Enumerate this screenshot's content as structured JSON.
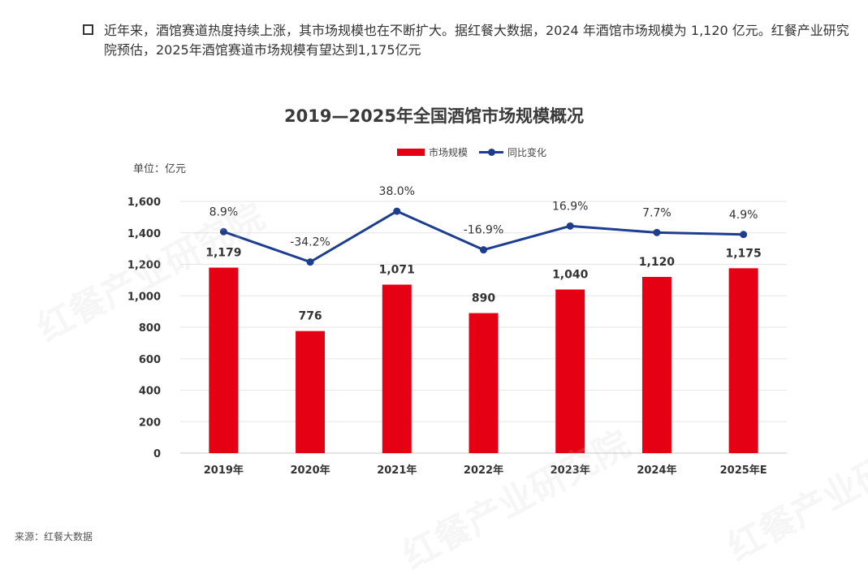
{
  "intro": {
    "text": "近年来，酒馆赛道热度持续上涨，其市场规模也在不断扩大。据红餐大数据，2024 年酒馆市场规模为 1,120 亿元。红餐产业研究院预估，2025年酒馆赛道市场规模有望达到1,175亿元"
  },
  "source": "来源：红餐大数据",
  "watermark": "红餐产业研究院",
  "chart_data": {
    "type": "bar",
    "title": "2019—2025年全国酒馆市场规模概况",
    "unit_label": "单位：亿元",
    "categories": [
      "2019年",
      "2020年",
      "2021年",
      "2022年",
      "2023年",
      "2024年",
      "2025年E"
    ],
    "series": [
      {
        "name": "市场规模",
        "type": "bar",
        "color": "#e50013",
        "values": [
          1179,
          776,
          1071,
          890,
          1040,
          1120,
          1175
        ],
        "labels": [
          "1,179",
          "776",
          "1,071",
          "890",
          "1,040",
          "1,120",
          "1,175"
        ]
      },
      {
        "name": "同比变化",
        "type": "line",
        "color": "#1d3d8f",
        "values": [
          8.9,
          -34.2,
          38.0,
          -16.9,
          16.9,
          7.7,
          4.9
        ],
        "labels": [
          "8.9%",
          "-34.2%",
          "38.0%",
          "-16.9%",
          "16.9%",
          "7.7%",
          "4.9%"
        ]
      }
    ],
    "ylim": [
      0,
      1600
    ],
    "yticks": [
      0,
      200,
      400,
      600,
      800,
      1000,
      1200,
      1400,
      1600
    ],
    "ytick_labels": [
      "0",
      "200",
      "400",
      "600",
      "800",
      "1,000",
      "1,200",
      "1,400",
      "1,600"
    ],
    "grid": true,
    "legend_position": "top-center"
  }
}
